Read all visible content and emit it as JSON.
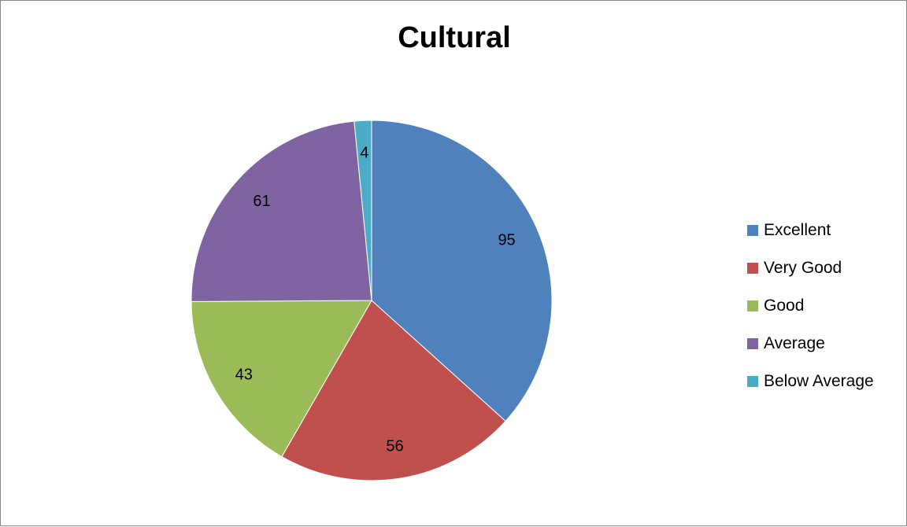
{
  "chart_data": {
    "type": "pie",
    "title": "Cultural",
    "categories": [
      "Excellent",
      "Very Good",
      "Good",
      "Average",
      "Below Average"
    ],
    "values": [
      95,
      56,
      43,
      61,
      4
    ],
    "colors": [
      "#4F81BD",
      "#C0504D",
      "#9BBB59",
      "#8064A2",
      "#4BACC6"
    ],
    "legend_position": "right"
  }
}
